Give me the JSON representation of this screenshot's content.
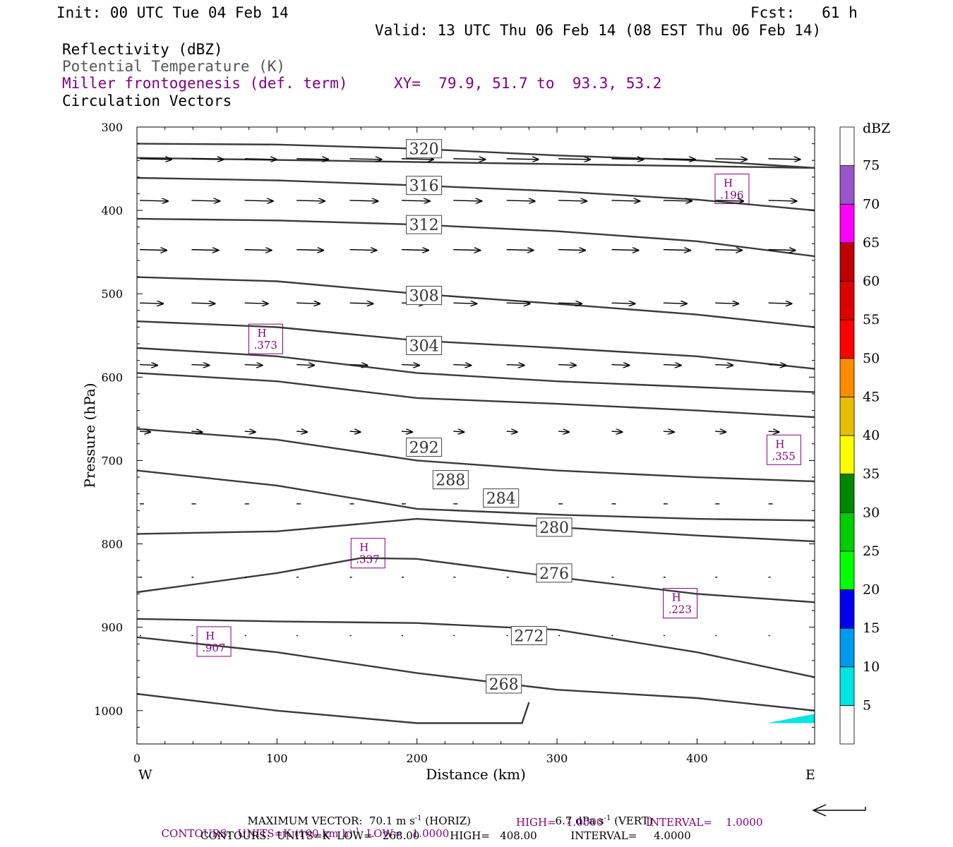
{
  "header": {
    "init": "Init: 00 UTC Tue 04 Feb 14",
    "fcst": "Fcst:   61 h",
    "valid": "Valid: 13 UTC Thu 06 Feb 14 (08 EST Thu 06 Feb 14)",
    "field1": "Reflectivity (dBZ)",
    "field2": "Potential Temperature (K)",
    "field3": "Miller frontogenesis (def. term)",
    "xy": "XY=  79.9, 51.7 to  93.3, 53.2",
    "field4": "Circulation Vectors"
  },
  "colors": {
    "contour": "#3a3a3a",
    "purple": "#800080",
    "cyan_shade": "#00e5e5"
  },
  "chart_data": {
    "type": "cross-section",
    "xlabel": "Distance (km)",
    "ylabel": "Pressure (hPa)",
    "xlim": [
      0,
      484
    ],
    "ylim": [
      300,
      1040
    ],
    "x_ticks": [
      0,
      100,
      200,
      300,
      400
    ],
    "y_ticks": [
      300,
      400,
      500,
      600,
      700,
      800,
      900,
      1000
    ],
    "left_end": "W",
    "right_end": "E",
    "isentropes": [
      {
        "label": "320",
        "label_at": [
          205,
          326
        ],
        "points": [
          [
            0,
            320
          ],
          [
            100,
            321
          ],
          [
            200,
            326
          ],
          [
            300,
            334
          ],
          [
            400,
            340
          ],
          [
            484,
            349
          ]
        ]
      },
      {
        "label": "",
        "points": [
          [
            0,
            337
          ],
          [
            484,
            349
          ]
        ]
      },
      {
        "label": "316",
        "label_at": [
          205,
          370
        ],
        "points": [
          [
            0,
            361
          ],
          [
            100,
            364
          ],
          [
            200,
            370
          ],
          [
            300,
            377
          ],
          [
            400,
            387
          ],
          [
            484,
            400
          ]
        ]
      },
      {
        "label": "312",
        "label_at": [
          205,
          417
        ],
        "points": [
          [
            0,
            410
          ],
          [
            100,
            412
          ],
          [
            200,
            417
          ],
          [
            300,
            425
          ],
          [
            400,
            437
          ],
          [
            484,
            455
          ]
        ]
      },
      {
        "label": "308",
        "label_at": [
          205,
          502
        ],
        "points": [
          [
            0,
            480
          ],
          [
            100,
            485
          ],
          [
            200,
            500
          ],
          [
            300,
            512
          ],
          [
            400,
            525
          ],
          [
            484,
            540
          ]
        ]
      },
      {
        "label": "",
        "points": [
          [
            0,
            533
          ],
          [
            100,
            540
          ],
          [
            200,
            556
          ],
          [
            300,
            565
          ],
          [
            400,
            575
          ],
          [
            484,
            590
          ]
        ]
      },
      {
        "label": "304",
        "label_at": [
          205,
          562
        ],
        "points": [
          [
            0,
            565
          ],
          [
            100,
            575
          ],
          [
            200,
            595
          ],
          [
            300,
            605
          ],
          [
            400,
            612
          ],
          [
            484,
            618
          ]
        ]
      },
      {
        "label": "",
        "points": [
          [
            0,
            595
          ],
          [
            100,
            605
          ],
          [
            200,
            625
          ],
          [
            300,
            632
          ],
          [
            400,
            640
          ],
          [
            484,
            648
          ]
        ]
      },
      {
        "label": "292",
        "label_at": [
          205,
          684
        ],
        "points": [
          [
            0,
            662
          ],
          [
            100,
            675
          ],
          [
            200,
            700
          ],
          [
            300,
            712
          ],
          [
            400,
            720
          ],
          [
            484,
            725
          ]
        ]
      },
      {
        "label": "288",
        "label_at": [
          224,
          723
        ],
        "points": [
          [
            0,
            712
          ],
          [
            100,
            730
          ],
          [
            200,
            758
          ],
          [
            300,
            765
          ],
          [
            400,
            770
          ],
          [
            484,
            772
          ]
        ]
      },
      {
        "label": "284",
        "label_at": [
          260,
          745
        ],
        "points": [
          [
            0,
            788
          ],
          [
            100,
            785
          ],
          [
            200,
            770
          ],
          [
            300,
            780
          ],
          [
            400,
            790
          ],
          [
            484,
            797
          ]
        ]
      },
      {
        "label": "280",
        "label_at": [
          298,
          780
        ],
        "points": [
          [
            0,
            858
          ],
          [
            100,
            835
          ],
          [
            160,
            817
          ],
          [
            200,
            818
          ],
          [
            300,
            840
          ],
          [
            400,
            860
          ],
          [
            484,
            870
          ]
        ]
      },
      {
        "label": "276",
        "label_at": [
          298,
          835
        ],
        "points": [
          [
            0,
            890
          ],
          [
            100,
            893
          ],
          [
            200,
            895
          ],
          [
            300,
            903
          ],
          [
            400,
            930
          ],
          [
            484,
            960
          ]
        ]
      },
      {
        "label": "272",
        "label_at": [
          280,
          910
        ],
        "points": [
          [
            0,
            912
          ],
          [
            100,
            930
          ],
          [
            200,
            955
          ],
          [
            300,
            975
          ],
          [
            400,
            985
          ],
          [
            484,
            1000
          ]
        ]
      },
      {
        "label": "268",
        "label_at": [
          262,
          968
        ],
        "points": [
          [
            0,
            980
          ],
          [
            100,
            1000
          ],
          [
            200,
            1015
          ],
          [
            275,
            1015
          ],
          [
            280,
            990
          ]
        ]
      }
    ],
    "frontogenesis_highs": [
      {
        "label": "H",
        "value": ".373",
        "at": [
          92,
          555
        ]
      },
      {
        "label": "H",
        "value": ".196",
        "at": [
          425,
          375
        ]
      },
      {
        "label": "H",
        "value": ".355",
        "at": [
          462,
          688
        ]
      },
      {
        "label": "H",
        "value": ".337",
        "at": [
          165,
          812
        ]
      },
      {
        "label": "H",
        "value": ".223",
        "at": [
          388,
          872
        ]
      },
      {
        "label": "H",
        "value": ".907",
        "at": [
          55,
          918
        ]
      }
    ],
    "vectors": [
      {
        "p": 338,
        "len": 45
      },
      {
        "p": 388,
        "len": 40
      },
      {
        "p": 447,
        "len": 38
      },
      {
        "p": 511,
        "len": 33
      },
      {
        "p": 585,
        "len": 25
      },
      {
        "p": 665,
        "len": 15
      },
      {
        "p": 752,
        "len": 6
      },
      {
        "p": 840,
        "len": 3
      },
      {
        "p": 910,
        "len": 2
      }
    ],
    "colorbar": {
      "title": "dBZ",
      "levels": [
        "5",
        "10",
        "15",
        "20",
        "25",
        "30",
        "35",
        "40",
        "45",
        "50",
        "55",
        "60",
        "65",
        "70",
        "75"
      ],
      "colors": [
        "#00e5e5",
        "#0099ee",
        "#0000ee",
        "#00ff00",
        "#00cc00",
        "#008800",
        "#ffff00",
        "#e6c000",
        "#ff8c00",
        "#ff0000",
        "#dd0000",
        "#c00000",
        "#ff00ff",
        "#9955cc",
        "#ffffff"
      ]
    }
  },
  "footer": {
    "line1a": "MAXIMUM VECTOR:  70.1 m s",
    "line1b": " (HORIZ)",
    "line1c": "6.7 dPa s",
    "line1d": " (VERT)",
    "exp_minus1": "-1",
    "line2a": "CONTOURS:  UNITS=K (100 km h)",
    "line2b": "  LOW=   1.0000",
    "line2c": "HIGH=   1.0000",
    "line2d": "INTERVAL=    1.0000",
    "line3": "CONTOURS:  UNITS=K  LOW=   268.00         HIGH=   408.00          INTERVAL=     4.0000"
  }
}
